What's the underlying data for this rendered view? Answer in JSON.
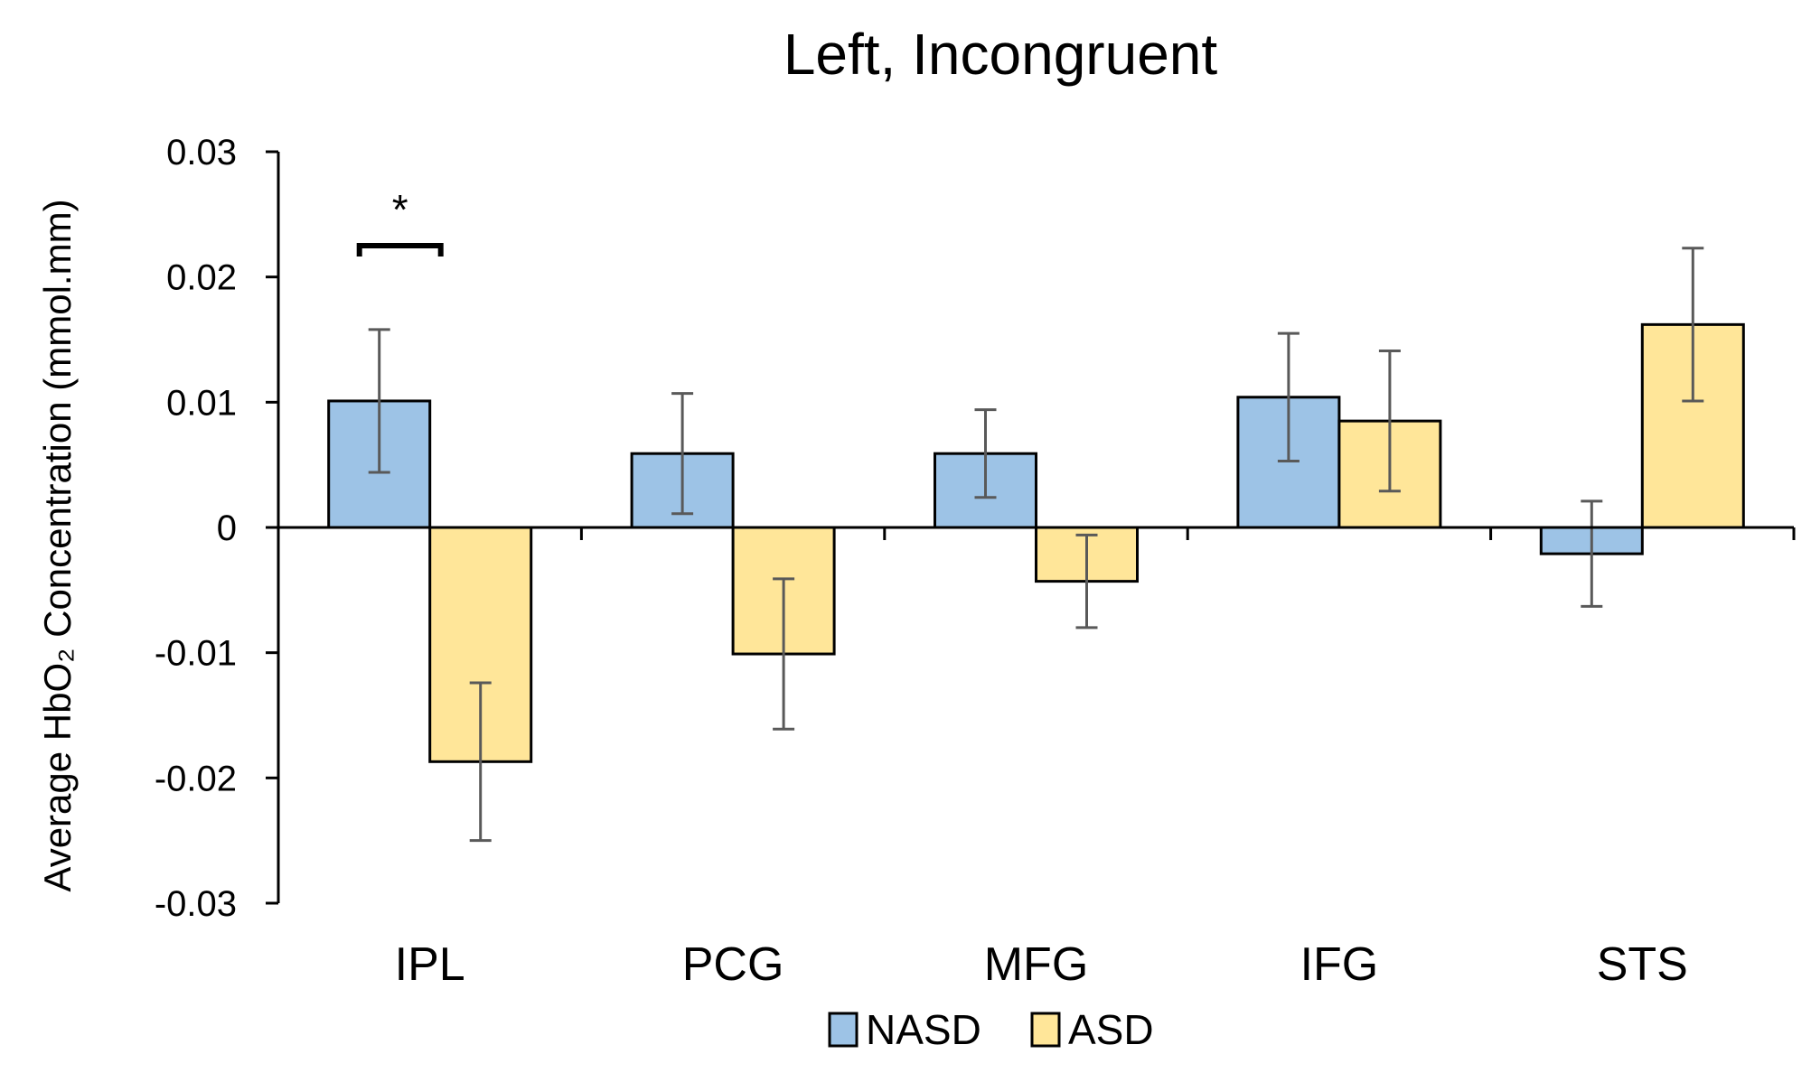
{
  "chart_data": {
    "type": "bar",
    "title": "Left, Incongruent",
    "xlabel": "",
    "ylabel": "Average HbO₂ Concentration (mmol.mm)",
    "ylim": [
      -0.03,
      0.03
    ],
    "yticks": [
      0.03,
      0.02,
      0.01,
      0,
      -0.01,
      -0.02,
      -0.03
    ],
    "ytick_labels": [
      "0.03",
      "0.02",
      "0.01",
      "0",
      "-0.01",
      "-0.02",
      "-0.03"
    ],
    "categories": [
      "IPL",
      "PCG",
      "MFG",
      "IFG",
      "STS"
    ],
    "series": [
      {
        "name": "NASD",
        "color": "#9DC3E6",
        "values": [
          0.0101,
          0.0059,
          0.0059,
          0.0104,
          -0.0021
        ],
        "error": [
          0.0057,
          0.0048,
          0.0035,
          0.0051,
          0.0042
        ]
      },
      {
        "name": "ASD",
        "color": "#FFE699",
        "values": [
          -0.0187,
          -0.0101,
          -0.0043,
          0.0085,
          0.0162
        ],
        "error": [
          0.0063,
          0.006,
          0.0037,
          0.0056,
          0.0061
        ]
      }
    ],
    "annotations": [
      {
        "category": "IPL",
        "text": "*",
        "bracket_y": 0.0225
      }
    ],
    "legend": {
      "position": "bottom",
      "entries": [
        "NASD",
        "ASD"
      ]
    },
    "grid": false,
    "error_bar_color": "#595959"
  }
}
